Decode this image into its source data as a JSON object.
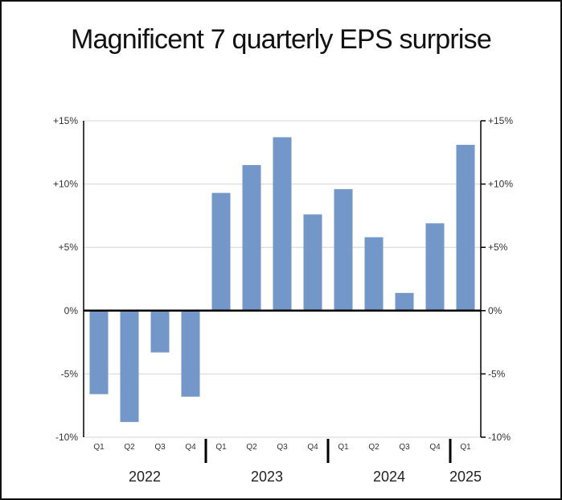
{
  "chart_data": {
    "type": "bar",
    "title": "Magnificent 7 quarterly EPS surprise",
    "xlabel": "",
    "ylabel": "",
    "categories": [
      "Q1",
      "Q2",
      "Q3",
      "Q4",
      "Q1",
      "Q2",
      "Q3",
      "Q4",
      "Q1",
      "Q2",
      "Q3",
      "Q4",
      "Q1"
    ],
    "years": [
      {
        "label": "2022",
        "quarters": 4
      },
      {
        "label": "2023",
        "quarters": 4
      },
      {
        "label": "2024",
        "quarters": 4
      },
      {
        "label": "2025",
        "quarters": 1
      }
    ],
    "series": [
      {
        "values": [
          -6.6,
          -8.8,
          -3.3,
          -6.8,
          9.3,
          11.5,
          13.7,
          7.6,
          9.6,
          5.8,
          1.4,
          6.9,
          13.1
        ]
      }
    ],
    "ylim": [
      -10,
      15
    ],
    "yticks": [
      {
        "value": 15,
        "label": "+15%"
      },
      {
        "value": 10,
        "label": "+10%"
      },
      {
        "value": 5,
        "label": "+5%"
      },
      {
        "value": 0,
        "label": "0%"
      },
      {
        "value": -5,
        "label": "-5%"
      },
      {
        "value": -10,
        "label": "-10%"
      }
    ],
    "grid": true,
    "bar_color": "#7297c8",
    "axis_color": "#000000",
    "grid_color": "#d4d4d4"
  }
}
